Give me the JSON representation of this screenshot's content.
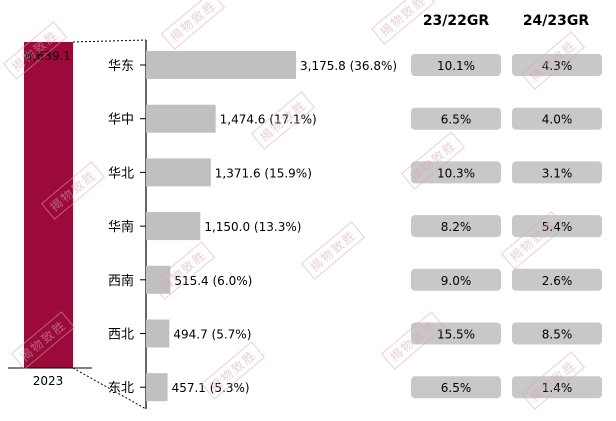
{
  "chart_data": {
    "type": "bar",
    "total": {
      "label": "2023",
      "value": 8639.1,
      "value_label": "8,639.1"
    },
    "categories": [
      "华东",
      "华中",
      "华北",
      "华南",
      "西南",
      "西北",
      "东北"
    ],
    "values": [
      3175.8,
      1474.6,
      1371.6,
      1150.0,
      515.4,
      494.7,
      457.1
    ],
    "value_labels": [
      "3,175.8 (36.8%)",
      "1,474.6 (17.1%)",
      "1,371.6 (15.9%)",
      "1,150.0 (13.3%)",
      "515.4 (6.0%)",
      "494.7 (5.7%)",
      "457.1 (5.3%)"
    ],
    "growth_headers": [
      "23/22GR",
      "24/23GR"
    ],
    "growth_23_22": [
      "10.1%",
      "6.5%",
      "10.3%",
      "8.2%",
      "9.0%",
      "15.5%",
      "6.5%"
    ],
    "growth_24_23": [
      "4.3%",
      "4.0%",
      "3.1%",
      "5.4%",
      "2.6%",
      "8.5%",
      "1.4%"
    ]
  },
  "watermark": {
    "text": "揭物致胜"
  },
  "colors": {
    "total_bar": "#9b0a3a",
    "region_bar": "#c0c0c0",
    "growth_box": "#c8c8c8",
    "axis": "#000000"
  }
}
